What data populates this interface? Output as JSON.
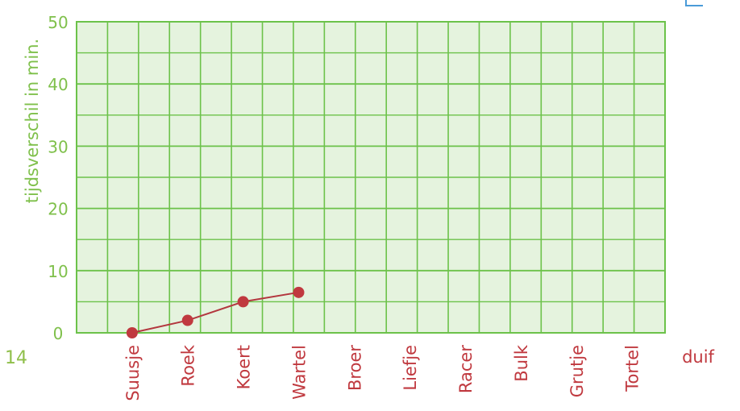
{
  "page_number": "14",
  "colors": {
    "grid": "#6cc24a",
    "axis_text": "#7fc04b",
    "category_text": "#c0393f",
    "line": "#b3373e",
    "point": "#c0393f",
    "plot_bg": "#e5f3de"
  },
  "chart_data": {
    "type": "line",
    "ylabel": "tijdsverschil in min.",
    "xlabel": "duif",
    "ylim": [
      0,
      50
    ],
    "y_ticks": [
      0,
      10,
      20,
      30,
      40,
      50
    ],
    "y_tick_labels": [
      "0",
      "10",
      "20",
      "30",
      "40",
      "50"
    ],
    "grid": true,
    "categories": [
      "Suusje",
      "Roek",
      "Koert",
      "Wartel",
      "Broer",
      "Liefje",
      "Racer",
      "Bulk",
      "Grutje",
      "Tortel"
    ],
    "series": [
      {
        "values": [
          0,
          2,
          5,
          6.5,
          null,
          null,
          null,
          null,
          null,
          null
        ]
      }
    ]
  }
}
